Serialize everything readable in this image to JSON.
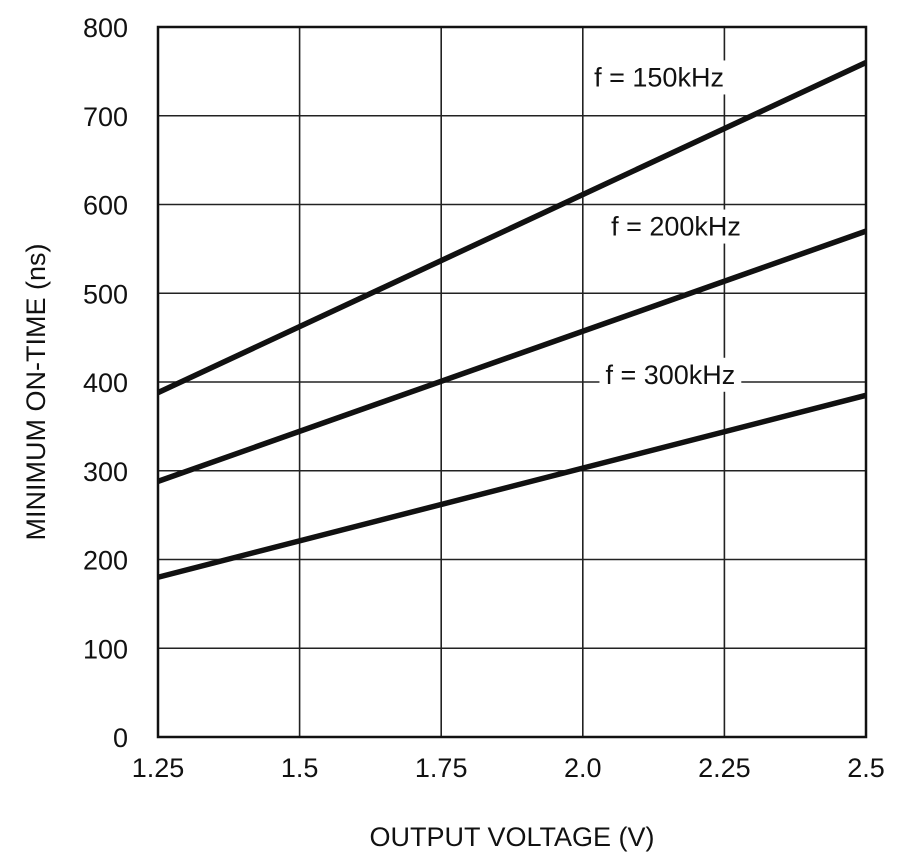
{
  "chart_data": {
    "type": "line",
    "title": "",
    "xlabel": "OUTPUT VOLTAGE (V)",
    "ylabel": "MINIMUM ON-TIME (ns)",
    "xlim": [
      1.25,
      2.5
    ],
    "ylim": [
      0,
      800
    ],
    "xticks": [
      1.25,
      1.5,
      1.75,
      2.0,
      2.25,
      2.5
    ],
    "xtick_labels": [
      "1.25",
      "1.5",
      "1.75",
      "2.0",
      "2.25",
      "2.5"
    ],
    "yticks": [
      0,
      100,
      200,
      300,
      400,
      500,
      600,
      700,
      800
    ],
    "ytick_labels": [
      "0",
      "100",
      "200",
      "300",
      "400",
      "500",
      "600",
      "700",
      "800"
    ],
    "grid": true,
    "legend": "inline labels",
    "line_color": "#111111",
    "series": [
      {
        "name": "f = 150kHz",
        "x": [
          1.25,
          2.5
        ],
        "y": [
          388,
          760
        ],
        "label_at": [
          2.02,
          733
        ]
      },
      {
        "name": "f = 200kHz",
        "x": [
          1.25,
          2.5
        ],
        "y": [
          288,
          570
        ],
        "label_at": [
          2.05,
          565
        ]
      },
      {
        "name": "f = 300kHz",
        "x": [
          1.25,
          2.5
        ],
        "y": [
          180,
          385
        ],
        "label_at": [
          2.04,
          398
        ]
      }
    ]
  }
}
